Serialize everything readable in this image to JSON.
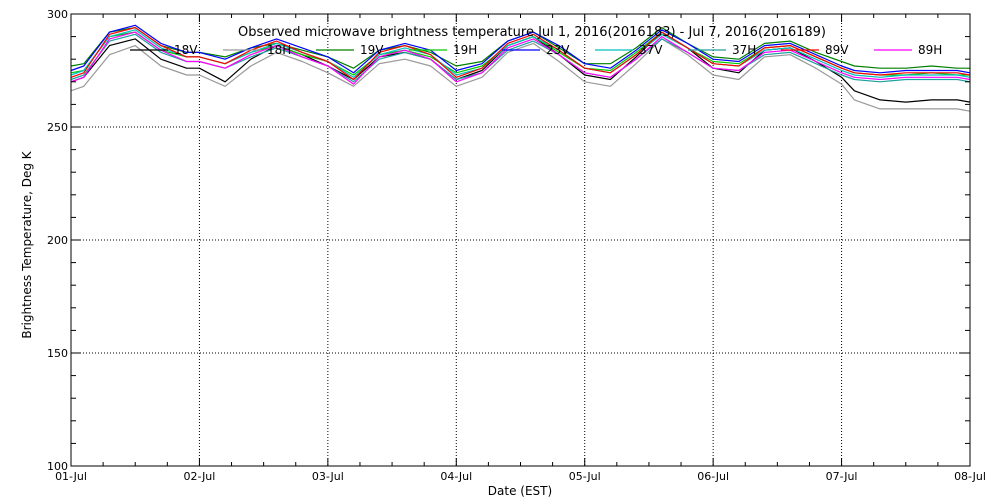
{
  "chart_data": {
    "type": "line",
    "title": "Observed microwave brightness temperature  Jul  1, 2016(2016183) - Jul  7, 2016(2016189)",
    "xlabel": "Date (EST)",
    "ylabel": "Brightness Temperature, Deg K",
    "xlim_days": [
      0,
      7
    ],
    "ylim": [
      100,
      300
    ],
    "x_ticks": [
      {
        "day": 0,
        "label": "01-Jul"
      },
      {
        "day": 1,
        "label": "02-Jul"
      },
      {
        "day": 2,
        "label": "03-Jul"
      },
      {
        "day": 3,
        "label": "04-Jul"
      },
      {
        "day": 4,
        "label": "05-Jul"
      },
      {
        "day": 5,
        "label": "06-Jul"
      },
      {
        "day": 6,
        "label": "07-Jul"
      },
      {
        "day": 7,
        "label": "08-Jul"
      }
    ],
    "y_ticks": [
      100,
      150,
      200,
      250,
      300
    ],
    "grid": "dotted",
    "legend_position": "top",
    "series": [
      {
        "name": "18V",
        "color": "#000000",
        "x": [
          0.0,
          0.1,
          0.3,
          0.5,
          0.7,
          0.9,
          1.0,
          1.2,
          1.4,
          1.6,
          1.8,
          2.0,
          2.2,
          2.4,
          2.6,
          2.8,
          3.0,
          3.2,
          3.4,
          3.6,
          3.8,
          4.0,
          4.2,
          4.4,
          4.6,
          4.8,
          5.0,
          5.2,
          5.4,
          5.6,
          5.8,
          6.0,
          6.1,
          6.3,
          6.5,
          6.7,
          6.9,
          7.0
        ],
        "values": [
          270,
          272,
          286,
          289,
          280,
          276,
          276,
          270,
          280,
          286,
          282,
          277,
          271,
          281,
          283,
          280,
          271,
          275,
          286,
          290,
          282,
          273,
          271,
          281,
          292,
          285,
          276,
          274,
          284,
          285,
          279,
          272,
          266,
          262,
          261,
          262,
          262,
          261
        ]
      },
      {
        "name": "18H",
        "color": "#999999",
        "x": [
          0.0,
          0.1,
          0.3,
          0.5,
          0.7,
          0.9,
          1.0,
          1.2,
          1.4,
          1.6,
          1.8,
          2.0,
          2.2,
          2.4,
          2.6,
          2.8,
          3.0,
          3.2,
          3.4,
          3.6,
          3.8,
          4.0,
          4.2,
          4.4,
          4.6,
          4.8,
          5.0,
          5.2,
          5.4,
          5.6,
          5.8,
          6.0,
          6.1,
          6.3,
          6.5,
          6.7,
          6.9,
          7.0
        ],
        "values": [
          266,
          268,
          282,
          286,
          277,
          273,
          273,
          268,
          277,
          283,
          279,
          274,
          268,
          278,
          280,
          277,
          268,
          272,
          283,
          287,
          279,
          270,
          268,
          278,
          289,
          282,
          273,
          271,
          281,
          282,
          276,
          269,
          262,
          258,
          258,
          258,
          258,
          257
        ]
      },
      {
        "name": "19V",
        "color": "#008000",
        "x": [
          0.0,
          0.1,
          0.3,
          0.5,
          0.7,
          0.9,
          1.0,
          1.2,
          1.4,
          1.6,
          1.8,
          2.0,
          2.2,
          2.4,
          2.6,
          2.8,
          3.0,
          3.2,
          3.4,
          3.6,
          3.8,
          4.0,
          4.2,
          4.4,
          4.6,
          4.8,
          5.0,
          5.2,
          5.4,
          5.6,
          5.8,
          6.0,
          6.1,
          6.3,
          6.5,
          6.7,
          6.9,
          7.0
        ],
        "values": [
          277,
          278,
          292,
          294,
          286,
          283,
          283,
          281,
          285,
          287,
          284,
          281,
          276,
          284,
          286,
          283,
          277,
          279,
          288,
          292,
          285,
          278,
          278,
          285,
          294,
          287,
          281,
          280,
          287,
          288,
          283,
          279,
          277,
          276,
          276,
          277,
          276,
          276
        ]
      },
      {
        "name": "19H",
        "color": "#00cc00",
        "x": [
          0.0,
          0.1,
          0.3,
          0.5,
          0.7,
          0.9,
          1.0,
          1.2,
          1.4,
          1.6,
          1.8,
          2.0,
          2.2,
          2.4,
          2.6,
          2.8,
          3.0,
          3.2,
          3.4,
          3.6,
          3.8,
          4.0,
          4.2,
          4.4,
          4.6,
          4.8,
          5.0,
          5.2,
          5.4,
          5.6,
          5.8,
          6.0,
          6.1,
          6.3,
          6.5,
          6.7,
          6.9,
          7.0
        ],
        "values": [
          274,
          275,
          290,
          292,
          284,
          281,
          281,
          278,
          283,
          286,
          282,
          279,
          273,
          282,
          284,
          281,
          274,
          277,
          286,
          290,
          283,
          276,
          275,
          283,
          292,
          285,
          279,
          278,
          285,
          286,
          281,
          276,
          274,
          273,
          273,
          274,
          273,
          273
        ]
      },
      {
        "name": "23V",
        "color": "#0000ff",
        "x": [
          0.0,
          0.1,
          0.3,
          0.5,
          0.7,
          0.9,
          1.0,
          1.2,
          1.4,
          1.6,
          1.8,
          2.0,
          2.2,
          2.4,
          2.6,
          2.8,
          3.0,
          3.2,
          3.4,
          3.6,
          3.8,
          4.0,
          4.2,
          4.4,
          4.6,
          4.8,
          5.0,
          5.2,
          5.4,
          5.6,
          5.8,
          6.0,
          6.1,
          6.3,
          6.5,
          6.7,
          6.9,
          7.0
        ],
        "values": [
          275,
          277,
          292,
          295,
          287,
          283,
          283,
          280,
          285,
          289,
          285,
          281,
          274,
          284,
          287,
          284,
          275,
          278,
          288,
          292,
          286,
          278,
          276,
          284,
          293,
          287,
          280,
          279,
          286,
          287,
          282,
          277,
          275,
          274,
          275,
          275,
          275,
          274
        ]
      },
      {
        "name": "37V",
        "color": "#00c0c0",
        "x": [
          0.0,
          0.1,
          0.3,
          0.5,
          0.7,
          0.9,
          1.0,
          1.2,
          1.4,
          1.6,
          1.8,
          2.0,
          2.2,
          2.4,
          2.6,
          2.8,
          3.0,
          3.2,
          3.4,
          3.6,
          3.8,
          4.0,
          4.2,
          4.4,
          4.6,
          4.8,
          5.0,
          5.2,
          5.4,
          5.6,
          5.8,
          6.0,
          6.1,
          6.3,
          6.5,
          6.7,
          6.9,
          7.0
        ],
        "values": [
          273,
          275,
          290,
          293,
          285,
          281,
          281,
          278,
          283,
          287,
          283,
          279,
          272,
          282,
          285,
          282,
          273,
          276,
          286,
          290,
          284,
          276,
          274,
          282,
          291,
          285,
          278,
          277,
          284,
          285,
          280,
          275,
          273,
          272,
          273,
          273,
          273,
          272
        ]
      },
      {
        "name": "37H",
        "color": "#20a0a0",
        "x": [
          0.0,
          0.1,
          0.3,
          0.5,
          0.7,
          0.9,
          1.0,
          1.2,
          1.4,
          1.6,
          1.8,
          2.0,
          2.2,
          2.4,
          2.6,
          2.8,
          3.0,
          3.2,
          3.4,
          3.6,
          3.8,
          4.0,
          4.2,
          4.4,
          4.6,
          4.8,
          5.0,
          5.2,
          5.4,
          5.6,
          5.8,
          6.0,
          6.1,
          6.3,
          6.5,
          6.7,
          6.9,
          7.0
        ],
        "values": [
          271,
          273,
          288,
          291,
          283,
          279,
          279,
          276,
          281,
          285,
          281,
          277,
          270,
          280,
          283,
          280,
          271,
          274,
          284,
          288,
          282,
          274,
          272,
          280,
          289,
          283,
          276,
          275,
          282,
          283,
          278,
          273,
          271,
          270,
          271,
          271,
          271,
          270
        ]
      },
      {
        "name": "89V",
        "color": "#ff0000",
        "x": [
          0.0,
          0.1,
          0.3,
          0.5,
          0.7,
          0.9,
          1.0,
          1.2,
          1.4,
          1.6,
          1.8,
          2.0,
          2.2,
          2.4,
          2.6,
          2.8,
          3.0,
          3.2,
          3.4,
          3.6,
          3.8,
          4.0,
          4.2,
          4.4,
          4.6,
          4.8,
          5.0,
          5.2,
          5.4,
          5.6,
          5.8,
          6.0,
          6.1,
          6.3,
          6.5,
          6.7,
          6.9,
          7.0
        ],
        "values": [
          272,
          274,
          291,
          294,
          286,
          281,
          281,
          278,
          284,
          288,
          283,
          279,
          271,
          283,
          286,
          282,
          272,
          276,
          287,
          291,
          284,
          276,
          274,
          282,
          292,
          285,
          278,
          277,
          285,
          286,
          281,
          276,
          274,
          273,
          274,
          274,
          274,
          273
        ]
      },
      {
        "name": "89H",
        "color": "#ff00ff",
        "x": [
          0.0,
          0.1,
          0.3,
          0.5,
          0.7,
          0.9,
          1.0,
          1.2,
          1.4,
          1.6,
          1.8,
          2.0,
          2.2,
          2.4,
          2.6,
          2.8,
          3.0,
          3.2,
          3.4,
          3.6,
          3.8,
          4.0,
          4.2,
          4.4,
          4.6,
          4.8,
          5.0,
          5.2,
          5.4,
          5.6,
          5.8,
          6.0,
          6.1,
          6.3,
          6.5,
          6.7,
          6.9,
          7.0
        ],
        "values": [
          270,
          272,
          289,
          292,
          284,
          279,
          279,
          276,
          282,
          286,
          281,
          277,
          269,
          281,
          284,
          280,
          270,
          274,
          285,
          289,
          282,
          274,
          272,
          280,
          290,
          283,
          276,
          275,
          283,
          284,
          279,
          274,
          272,
          271,
          272,
          272,
          272,
          271
        ]
      }
    ]
  }
}
